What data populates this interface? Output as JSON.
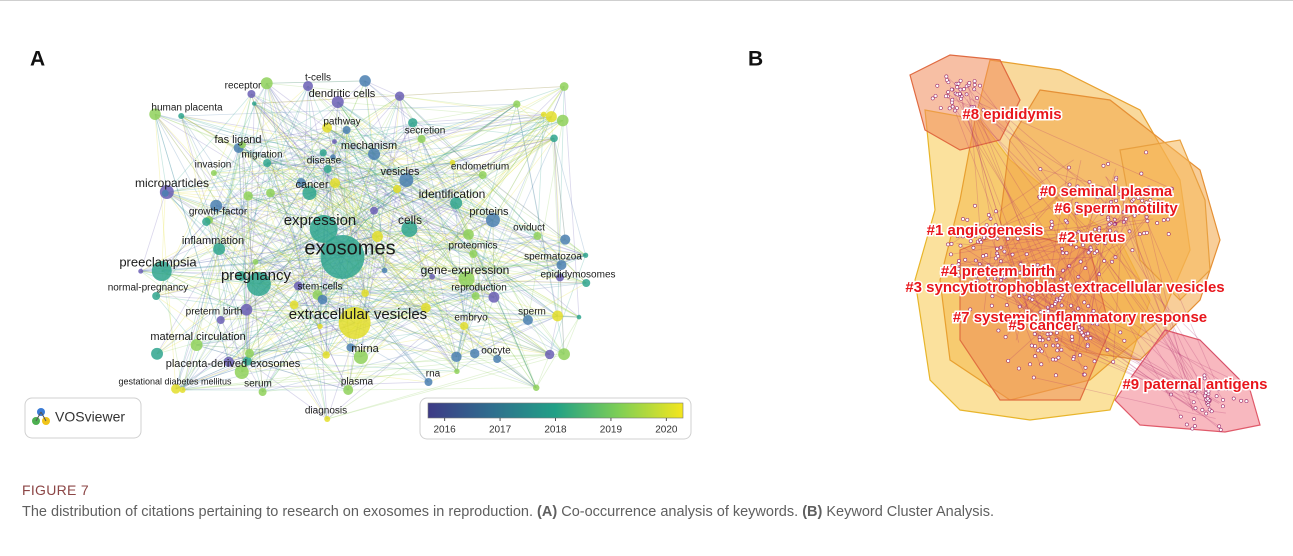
{
  "panels": [
    {
      "label": "A",
      "keywords": [
        "t-cells",
        "receptor",
        "dendritic cells",
        "human placenta",
        "pathway",
        "fas ligand",
        "secretion",
        "mechanism",
        "migration",
        "invasion",
        "disease",
        "endometrium",
        "vesicles",
        "microparticles",
        "cancer",
        "identification",
        "proteins",
        "growth-factor",
        "expression",
        "cells",
        "oviduct",
        "inflammation",
        "exosomes",
        "proteomics",
        "spermatozoa",
        "preeclampsia",
        "pregnancy",
        "gene-expression",
        "epididymosomes",
        "normal-pregnancy",
        "stem-cells",
        "reproduction",
        "preterm birth",
        "extracellular vesicles",
        "embryo",
        "sperm",
        "maternal circulation",
        "mirna",
        "placenta-derived exosomes",
        "oocyte",
        "serum",
        "gestational diabetes mellitus",
        "plasma",
        "rna",
        "diagnosis"
      ],
      "logo": "VOSviewer",
      "colorbar": {
        "range": [
          2015.7,
          2020.3
        ],
        "ticks": [
          2016,
          2017,
          2018,
          2019,
          2020
        ]
      }
    },
    {
      "label": "B",
      "clusters": [
        "#8 epididymis",
        "#0 seminal plasma",
        "#6 sperm motility",
        "#1 angiogenesis",
        "#2 uterus",
        "#4 preterm birth",
        "#3 syncytiotrophoblast extracellular vesicles",
        "#7 systemic inflammatory response",
        "#5 cancer",
        "#9 paternal antigens"
      ]
    }
  ],
  "caption": {
    "label": "FIGURE 7",
    "segments": [
      {
        "text": "The distribution of citations pertaining to research on exosomes in reproduction. ",
        "bold": false
      },
      {
        "text": "(A)",
        "bold": true
      },
      {
        "text": " Co-occurrence analysis of keywords. ",
        "bold": false
      },
      {
        "text": "(B)",
        "bold": true
      },
      {
        "text": " Keyword Cluster Analysis.",
        "bold": false
      }
    ]
  }
}
